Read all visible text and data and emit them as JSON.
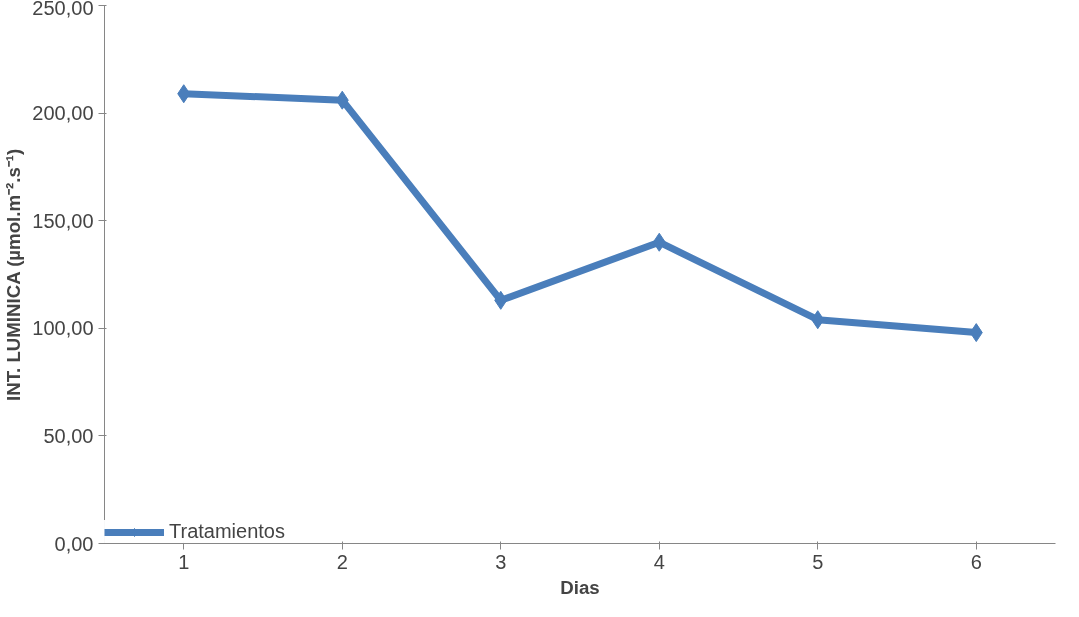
{
  "chart_data": {
    "type": "line",
    "xlabel": "Dias",
    "ylabel": "INT. LUMINICA (µmol.m⁻².s⁻¹)",
    "categories": [
      "1",
      "2",
      "3",
      "4",
      "5",
      "6"
    ],
    "series": [
      {
        "name": "Tratamientos",
        "color": "#4a7ebb",
        "values": [
          209,
          206,
          113,
          140,
          104,
          98
        ]
      }
    ],
    "ylim": [
      0,
      250
    ],
    "yticks": [
      {
        "value": 0,
        "label": "0,00"
      },
      {
        "value": 50,
        "label": "50,00"
      },
      {
        "value": 100,
        "label": "100,00"
      },
      {
        "value": 150,
        "label": "150,00"
      },
      {
        "value": 200,
        "label": "200,00"
      },
      {
        "value": 250,
        "label": "250,00"
      }
    ],
    "grid": false,
    "legend": "bottom left",
    "marker": "diamond",
    "line_style": "solid"
  }
}
